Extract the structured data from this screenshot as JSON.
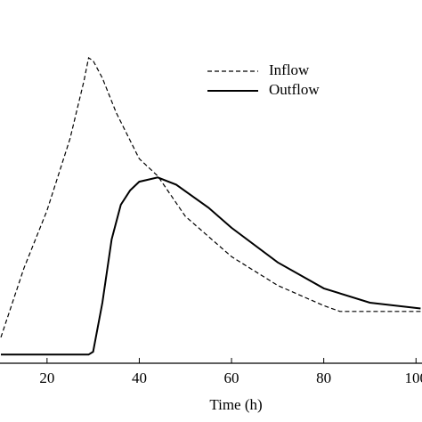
{
  "chart_data": {
    "type": "line",
    "x_label": "Time (h)",
    "xlim": [
      9.8,
      101.3
    ],
    "xticks": [
      20,
      40,
      60,
      80,
      100
    ],
    "ylim": [
      -3,
      120
    ],
    "legend": "upper right",
    "series": [
      {
        "name": "Inflow",
        "color": "#000000",
        "style": "dashed",
        "x": [
          10,
          15,
          20,
          25,
          28,
          29,
          30,
          32,
          35,
          40,
          44,
          50,
          60,
          70,
          80,
          83.5,
          90,
          101
        ],
        "values": [
          6,
          30,
          50,
          75,
          95,
          103,
          102,
          96,
          84,
          68,
          62,
          48,
          34,
          24,
          17,
          15,
          15,
          15
        ]
      },
      {
        "name": "Outflow",
        "color": "#000000",
        "style": "solid",
        "x": [
          10,
          20,
          29,
          30,
          32,
          34,
          36,
          38,
          40,
          44,
          48,
          55,
          60,
          70,
          80,
          90,
          101
        ],
        "values": [
          0,
          0,
          0,
          1,
          18,
          40,
          52,
          57,
          60,
          61.5,
          59,
          51,
          44,
          32,
          23,
          18,
          16
        ]
      }
    ]
  }
}
